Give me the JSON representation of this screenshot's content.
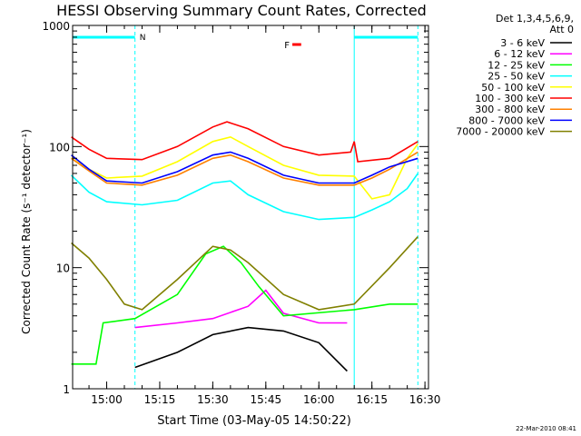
{
  "chart_data": {
    "type": "line",
    "title": "HESSI Observing Summary Count Rates, Corrected",
    "xlabel": "Start Time (03-May-05 14:50:22)",
    "ylabel": "Corrected Count Rate (s⁻¹ detector⁻¹)",
    "footer": "22-Mar-2010 08:41",
    "y_scale": "log",
    "ylim": [
      1,
      1000
    ],
    "xlim": [
      "14:50:22",
      "16:31:00"
    ],
    "x_ticks": [
      "15:00",
      "15:15",
      "15:30",
      "15:45",
      "16:00",
      "16:15",
      "16:30"
    ],
    "y_ticks": [
      "1",
      "10",
      "100",
      "1000"
    ],
    "legend_title": [
      "Det 1,3,4,5,6,9,",
      "Att 0"
    ],
    "legend_position": "right",
    "annotations": {
      "night_label": "N",
      "flare_label": "F"
    },
    "night_intervals": [
      [
        "14:50:22",
        "15:08:00"
      ],
      [
        "16:10:00",
        "16:28:00"
      ]
    ],
    "flare_interval": [
      "15:52:30",
      "15:55:00"
    ],
    "series": [
      {
        "name": "3 - 6 keV",
        "color": "#000000",
        "points": [
          [
            "15:08",
            1.5
          ],
          [
            "15:20",
            2.0
          ],
          [
            "15:30",
            2.8
          ],
          [
            "15:40",
            3.2
          ],
          [
            "15:50",
            3.0
          ],
          [
            "16:00",
            2.4
          ],
          [
            "16:08",
            1.4
          ]
        ]
      },
      {
        "name": "6 - 12 keV",
        "color": "#ff00ff",
        "points": [
          [
            "15:08",
            3.2
          ],
          [
            "15:20",
            3.5
          ],
          [
            "15:30",
            3.8
          ],
          [
            "15:40",
            4.8
          ],
          [
            "15:45",
            6.5
          ],
          [
            "15:50",
            4.2
          ],
          [
            "16:00",
            3.5
          ],
          [
            "16:08",
            3.5
          ]
        ]
      },
      {
        "name": "12 - 25 keV",
        "color": "#00ff00",
        "points": [
          [
            "14:50",
            1.6
          ],
          [
            "14:57",
            1.6
          ],
          [
            "14:59",
            3.5
          ],
          [
            "15:08",
            3.8
          ],
          [
            "15:20",
            6.0
          ],
          [
            "15:28",
            13.0
          ],
          [
            "15:33",
            15.0
          ],
          [
            "15:38",
            11.0
          ],
          [
            "15:43",
            7.0
          ],
          [
            "15:50",
            4.0
          ],
          [
            "16:10",
            4.5
          ],
          [
            "16:20",
            5.0
          ],
          [
            "16:28",
            5.0
          ]
        ]
      },
      {
        "name": "25 - 50 keV",
        "color": "#00ffff",
        "points": [
          [
            "14:50",
            58
          ],
          [
            "14:55",
            42
          ],
          [
            "15:00",
            35
          ],
          [
            "15:10",
            33
          ],
          [
            "15:20",
            36
          ],
          [
            "15:30",
            50
          ],
          [
            "15:35",
            52
          ],
          [
            "15:40",
            40
          ],
          [
            "15:50",
            29
          ],
          [
            "16:00",
            25
          ],
          [
            "16:10",
            26
          ],
          [
            "16:15",
            30
          ],
          [
            "16:20",
            35
          ],
          [
            "16:25",
            45
          ],
          [
            "16:28",
            60
          ]
        ]
      },
      {
        "name": "50 - 100 keV",
        "color": "#ffff00",
        "points": [
          [
            "14:50",
            80
          ],
          [
            "14:55",
            65
          ],
          [
            "15:00",
            55
          ],
          [
            "15:10",
            57
          ],
          [
            "15:20",
            75
          ],
          [
            "15:30",
            110
          ],
          [
            "15:35",
            120
          ],
          [
            "15:40",
            100
          ],
          [
            "15:50",
            70
          ],
          [
            "16:00",
            58
          ],
          [
            "16:10",
            57
          ],
          [
            "16:15",
            37
          ],
          [
            "16:20",
            40
          ],
          [
            "16:25",
            80
          ],
          [
            "16:28",
            105
          ]
        ]
      },
      {
        "name": "100 - 300 keV",
        "color": "#ff0000",
        "points": [
          [
            "14:50",
            120
          ],
          [
            "14:55",
            95
          ],
          [
            "15:00",
            80
          ],
          [
            "15:10",
            78
          ],
          [
            "15:20",
            100
          ],
          [
            "15:30",
            145
          ],
          [
            "15:34",
            160
          ],
          [
            "15:40",
            140
          ],
          [
            "15:50",
            100
          ],
          [
            "16:00",
            85
          ],
          [
            "16:09",
            90
          ],
          [
            "16:10",
            110
          ],
          [
            "16:11",
            75
          ],
          [
            "16:20",
            80
          ],
          [
            "16:28",
            110
          ]
        ]
      },
      {
        "name": "300 - 800 keV",
        "color": "#ff8000",
        "points": [
          [
            "14:50",
            80
          ],
          [
            "14:55",
            63
          ],
          [
            "15:00",
            50
          ],
          [
            "15:10",
            48
          ],
          [
            "15:20",
            58
          ],
          [
            "15:30",
            80
          ],
          [
            "15:35",
            85
          ],
          [
            "15:40",
            75
          ],
          [
            "15:50",
            55
          ],
          [
            "16:00",
            48
          ],
          [
            "16:10",
            48
          ],
          [
            "16:15",
            55
          ],
          [
            "16:20",
            65
          ],
          [
            "16:28",
            90
          ]
        ]
      },
      {
        "name": "800 - 7000 keV",
        "color": "#0000ff",
        "points": [
          [
            "14:50",
            85
          ],
          [
            "14:55",
            65
          ],
          [
            "15:00",
            52
          ],
          [
            "15:10",
            50
          ],
          [
            "15:20",
            62
          ],
          [
            "15:30",
            85
          ],
          [
            "15:35",
            90
          ],
          [
            "15:40",
            80
          ],
          [
            "15:50",
            58
          ],
          [
            "16:00",
            50
          ],
          [
            "16:10",
            50
          ],
          [
            "16:15",
            58
          ],
          [
            "16:20",
            68
          ],
          [
            "16:28",
            80
          ]
        ]
      },
      {
        "name": "7000 - 20000 keV",
        "color": "#808000",
        "points": [
          [
            "14:50",
            16
          ],
          [
            "14:55",
            12
          ],
          [
            "15:00",
            8
          ],
          [
            "15:05",
            5
          ],
          [
            "15:10",
            4.5
          ],
          [
            "15:20",
            8
          ],
          [
            "15:30",
            15
          ],
          [
            "15:35",
            14
          ],
          [
            "15:40",
            11
          ],
          [
            "15:50",
            6
          ],
          [
            "16:00",
            4.5
          ],
          [
            "16:10",
            5
          ],
          [
            "16:20",
            10
          ],
          [
            "16:28",
            18
          ]
        ]
      }
    ]
  }
}
